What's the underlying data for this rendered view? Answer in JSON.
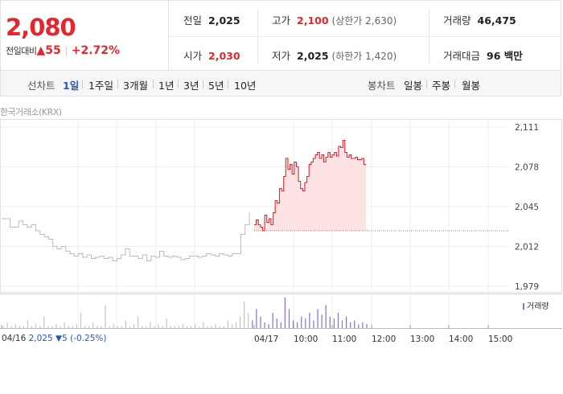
{
  "summary": {
    "price": "2,080",
    "change_label": "전일대비",
    "change_arrow": "▲",
    "change": "55",
    "change_pct": "+2.72%"
  },
  "info": {
    "prev_close_label": "전일",
    "prev_close": "2,025",
    "open_label": "시가",
    "open": "2,030",
    "high_label": "고가",
    "high": "2,100",
    "upper_limit": "(상한가 2,630)",
    "low_label": "저가",
    "low": "2,025",
    "lower_limit": "(하한가 1,420)",
    "volume_label": "거래량",
    "volume": "46,475",
    "value_label": "거래대금",
    "value": "96 백만"
  },
  "toolbar": {
    "line_label": "선차트",
    "periods": [
      "1일",
      "1주일",
      "3개월",
      "1년",
      "3년",
      "5년",
      "10년"
    ],
    "selected_period": "1일",
    "candle_label": "봉차트",
    "candles": [
      "일봉",
      "주봉",
      "월봉"
    ]
  },
  "source_label": "한국거래소(KRX)",
  "volume_legend": "거래량",
  "prev_day": {
    "date": "04/16",
    "close": "2,025",
    "arrow": "▼",
    "change": "5",
    "pct": "(-0.25%)"
  },
  "colors": {
    "up": "#e6262d",
    "down": "#2a55c8",
    "fill": "#fde3e4",
    "prev_line": "#bbbbbb",
    "volume": "#8b6fcf"
  },
  "chart_data": {
    "type": "line",
    "y_ticks": [
      "2,111",
      "2,078",
      "2,045",
      "2,012",
      "1,979"
    ],
    "ylim": [
      1979,
      2111
    ],
    "x_ticks": [
      "04/16",
      "04/17",
      "10:00",
      "11:00",
      "12:00",
      "13:00",
      "14:00",
      "15:00"
    ],
    "baseline": 2025,
    "series": [
      {
        "values": [
          2035,
          2035,
          2028,
          2028,
          2033,
          2030,
          2028,
          2030,
          2025,
          2022,
          2020,
          2018,
          2012,
          2010,
          2012,
          2008,
          2006,
          2004,
          2006,
          2003,
          2005,
          2002,
          2003,
          2004,
          2002,
          2003,
          2000,
          2002,
          2005,
          2010,
          2004,
          2004,
          2002,
          2005,
          2000,
          2004,
          2003,
          2008,
          2004,
          2003,
          2004,
          2003,
          2001,
          2002,
          2004,
          2004,
          2003,
          2004,
          2006,
          2005,
          2004,
          2006,
          2005,
          2004,
          2006,
          2006,
          2022,
          2030,
          2040
        ]
      },
      {
        "values": [
          2030,
          2034,
          2030,
          2028,
          2025,
          2038,
          2032,
          2035,
          2030,
          2040,
          2050,
          2048,
          2060,
          2058,
          2070,
          2085,
          2076,
          2080,
          2072,
          2082,
          2078,
          2066,
          2060,
          2058,
          2065,
          2070,
          2080,
          2082,
          2085,
          2088,
          2090,
          2085,
          2088,
          2082,
          2086,
          2090,
          2086,
          2088,
          2090,
          2087,
          2095,
          2094,
          2100,
          2090,
          2086,
          2088,
          2085,
          2085,
          2086,
          2084,
          2084,
          2085,
          2080,
          2080
        ]
      }
    ],
    "volume": [
      1,
      3,
      1,
      2,
      1,
      1,
      4,
      1,
      2,
      1,
      6,
      1,
      1,
      2,
      1,
      3,
      1,
      1,
      2,
      8,
      1,
      1,
      3,
      1,
      1,
      12,
      1,
      2,
      1,
      1,
      4,
      1,
      2,
      6,
      1,
      1,
      3,
      1,
      2,
      1,
      5,
      1,
      1,
      1,
      2,
      1,
      1,
      2,
      1,
      3,
      1,
      1,
      2,
      1,
      1,
      4,
      2,
      3,
      6,
      14,
      8,
      4,
      10,
      6,
      3,
      2,
      8,
      5,
      3,
      16,
      10,
      4,
      3,
      6,
      5,
      8,
      4,
      10,
      7,
      12,
      6,
      5,
      8,
      4,
      6,
      3,
      4,
      2,
      3,
      2
    ]
  }
}
